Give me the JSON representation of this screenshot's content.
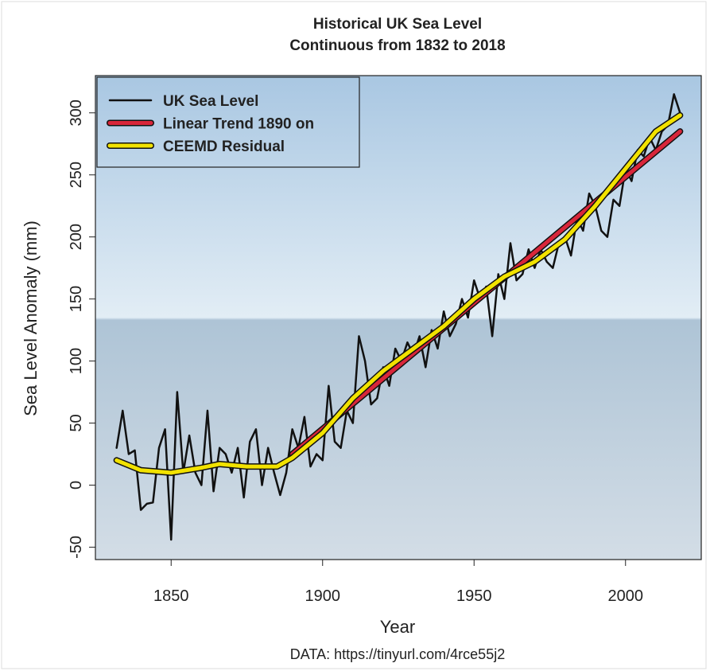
{
  "chart_data": {
    "type": "line",
    "title": "Historical UK Sea Level",
    "subtitle": "Continuous from 1832 to 2018",
    "x_label": "Year",
    "y_label": "Sea Level Anomaly (mm)",
    "note": "DATA: https://tinyurl.com/4rce55j2",
    "xlim": [
      1825,
      2025
    ],
    "ylim": [
      -60,
      330
    ],
    "xticks": [
      1850,
      1900,
      1950,
      2000
    ],
    "yticks": [
      -50,
      0,
      50,
      100,
      150,
      200,
      250,
      300
    ],
    "legend": "top-left",
    "series": [
      {
        "name": "UK Sea Level",
        "color": "#111111",
        "width": 2.5,
        "x": [
          1832,
          1834,
          1836,
          1838,
          1840,
          1842,
          1844,
          1846,
          1848,
          1850,
          1852,
          1854,
          1856,
          1858,
          1860,
          1862,
          1864,
          1866,
          1868,
          1870,
          1872,
          1874,
          1876,
          1878,
          1880,
          1882,
          1884,
          1886,
          1888,
          1890,
          1892,
          1894,
          1896,
          1898,
          1900,
          1902,
          1904,
          1906,
          1908,
          1910,
          1912,
          1914,
          1916,
          1918,
          1920,
          1922,
          1924,
          1926,
          1928,
          1930,
          1932,
          1934,
          1936,
          1938,
          1940,
          1942,
          1944,
          1946,
          1948,
          1950,
          1952,
          1954,
          1956,
          1958,
          1960,
          1962,
          1964,
          1966,
          1968,
          1970,
          1972,
          1974,
          1976,
          1978,
          1980,
          1982,
          1984,
          1986,
          1988,
          1990,
          1992,
          1994,
          1996,
          1998,
          2000,
          2002,
          2004,
          2006,
          2008,
          2010,
          2012,
          2014,
          2016,
          2018
        ],
        "values": [
          30,
          60,
          25,
          28,
          -20,
          -15,
          -14,
          30,
          45,
          -44,
          75,
          10,
          40,
          10,
          0,
          60,
          -5,
          30,
          25,
          10,
          30,
          -10,
          35,
          45,
          0,
          30,
          10,
          -8,
          10,
          45,
          30,
          55,
          15,
          25,
          20,
          80,
          35,
          30,
          60,
          50,
          120,
          100,
          65,
          70,
          95,
          80,
          110,
          100,
          115,
          105,
          120,
          95,
          125,
          110,
          140,
          120,
          130,
          150,
          135,
          165,
          150,
          160,
          120,
          170,
          150,
          195,
          165,
          170,
          190,
          175,
          190,
          180,
          175,
          195,
          200,
          185,
          215,
          205,
          235,
          225,
          205,
          200,
          230,
          225,
          255,
          245,
          270,
          265,
          280,
          270,
          285,
          290,
          315,
          300
        ]
      },
      {
        "name": "Linear Trend 1890 on",
        "color": "#d8263a",
        "width": 5,
        "x": [
          1890,
          2018
        ],
        "values": [
          25,
          285
        ]
      },
      {
        "name": "CEEMD Residual",
        "color": "#f2e200",
        "width": 5,
        "x": [
          1832,
          1840,
          1850,
          1860,
          1866,
          1875,
          1885,
          1890,
          1900,
          1910,
          1920,
          1930,
          1940,
          1950,
          1960,
          1970,
          1980,
          1990,
          2000,
          2010,
          2018
        ],
        "values": [
          20,
          12,
          10,
          14,
          17,
          15,
          15,
          22,
          42,
          70,
          92,
          110,
          128,
          150,
          168,
          180,
          198,
          225,
          255,
          285,
          298
        ]
      }
    ]
  }
}
